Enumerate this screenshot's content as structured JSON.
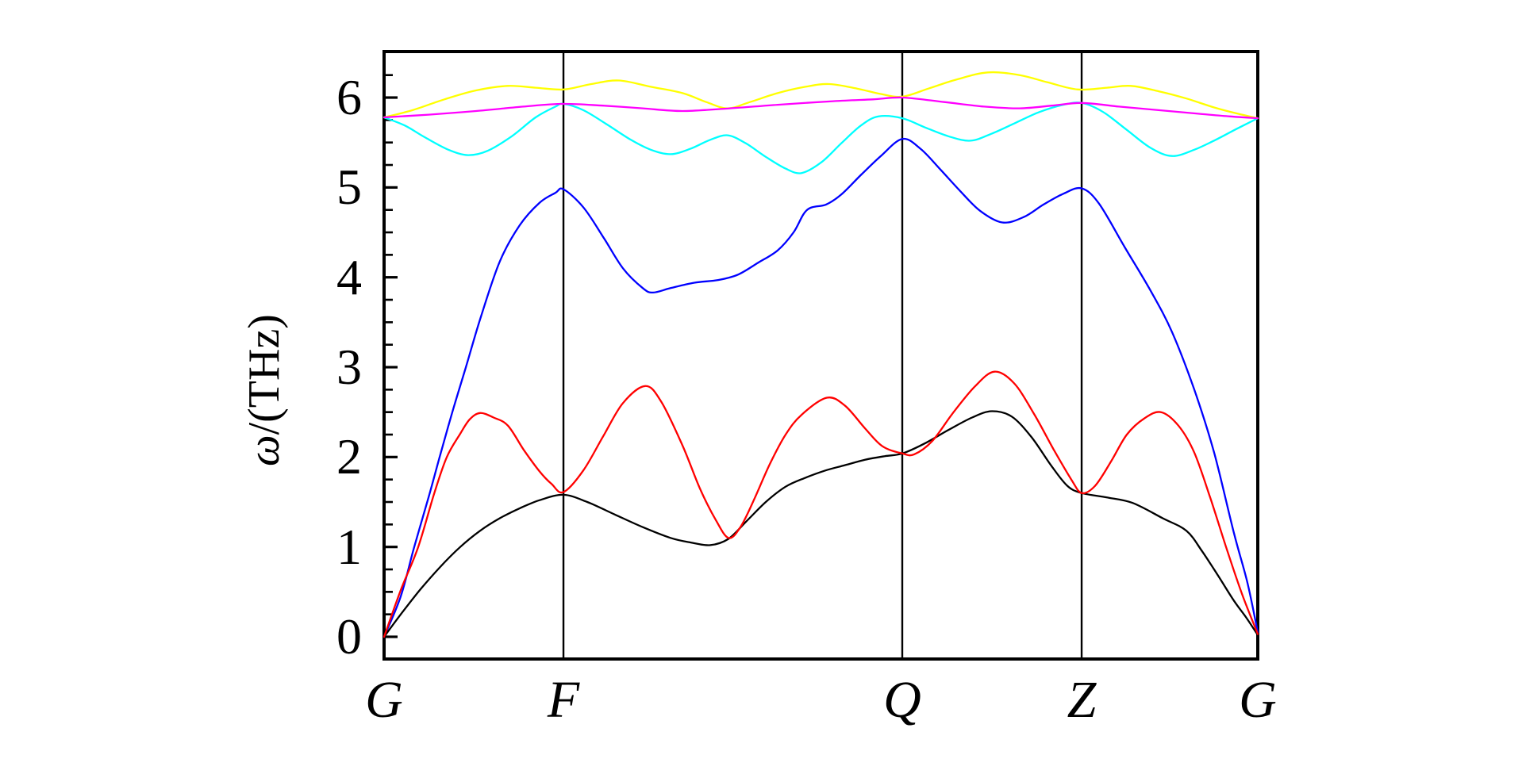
{
  "chart_data": {
    "type": "line",
    "title": "",
    "ylabel": "ω/(THz)",
    "ylabel_parts": [
      "ω",
      "/(THz)"
    ],
    "legend": "none",
    "grid": "off",
    "x_axis": {
      "description": "High-symmetry point path, vertical reference lines at interior points",
      "symmetry_points": [
        {
          "label": "G",
          "pos": 0.0
        },
        {
          "label": "F",
          "pos": 0.2053
        },
        {
          "label": "Q",
          "pos": 0.5931
        },
        {
          "label": "Z",
          "pos": 0.7984
        },
        {
          "label": "G",
          "pos": 1.0
        }
      ]
    },
    "y_axis": {
      "min": -0.25,
      "max": 6.52,
      "major_step": 1,
      "minor_step": 0.25,
      "tick_labels": [
        "0",
        "1",
        "2",
        "3",
        "4",
        "5",
        "6"
      ]
    },
    "series": [
      {
        "name": "branch-4-cyan",
        "color": "#00ffff",
        "points": [
          [
            0,
            5.78
          ],
          [
            0.0236,
            5.69
          ],
          [
            0.0463,
            5.56
          ],
          [
            0.0736,
            5.42
          ],
          [
            0.0963,
            5.36
          ],
          [
            0.119,
            5.41
          ],
          [
            0.1462,
            5.57
          ],
          [
            0.1735,
            5.78
          ],
          [
            0.1962,
            5.9
          ],
          [
            0.2053,
            5.93
          ],
          [
            0.228,
            5.86
          ],
          [
            0.2552,
            5.7
          ],
          [
            0.2825,
            5.53
          ],
          [
            0.3052,
            5.42
          ],
          [
            0.3279,
            5.37
          ],
          [
            0.3506,
            5.43
          ],
          [
            0.3733,
            5.53
          ],
          [
            0.3933,
            5.58
          ],
          [
            0.4142,
            5.49
          ],
          [
            0.4369,
            5.34
          ],
          [
            0.4596,
            5.21
          ],
          [
            0.4778,
            5.16
          ],
          [
            0.5005,
            5.28
          ],
          [
            0.5232,
            5.49
          ],
          [
            0.5459,
            5.69
          ],
          [
            0.5659,
            5.79
          ],
          [
            0.5931,
            5.77
          ],
          [
            0.6185,
            5.67
          ],
          [
            0.6458,
            5.57
          ],
          [
            0.6712,
            5.52
          ],
          [
            0.6957,
            5.6
          ],
          [
            0.723,
            5.72
          ],
          [
            0.7502,
            5.84
          ],
          [
            0.7775,
            5.92
          ],
          [
            0.7984,
            5.94
          ],
          [
            0.8229,
            5.84
          ],
          [
            0.8501,
            5.64
          ],
          [
            0.8774,
            5.44
          ],
          [
            0.9019,
            5.35
          ],
          [
            0.9273,
            5.42
          ],
          [
            0.9519,
            5.53
          ],
          [
            0.9755,
            5.65
          ],
          [
            1,
            5.77
          ]
        ]
      },
      {
        "name": "branch-6-yellow",
        "color": "#ffff00",
        "points": [
          [
            0,
            5.78
          ],
          [
            0.0327,
            5.86
          ],
          [
            0.069,
            5.98
          ],
          [
            0.1053,
            6.08
          ],
          [
            0.1417,
            6.13
          ],
          [
            0.1735,
            6.11
          ],
          [
            0.2053,
            6.09
          ],
          [
            0.2371,
            6.15
          ],
          [
            0.2689,
            6.19
          ],
          [
            0.3052,
            6.12
          ],
          [
            0.3415,
            6.05
          ],
          [
            0.3688,
            5.95
          ],
          [
            0.3933,
            5.88
          ],
          [
            0.4187,
            5.95
          ],
          [
            0.4505,
            6.05
          ],
          [
            0.4823,
            6.12
          ],
          [
            0.5095,
            6.15
          ],
          [
            0.5413,
            6.1
          ],
          [
            0.5686,
            6.04
          ],
          [
            0.5931,
            6.01
          ],
          [
            0.6231,
            6.1
          ],
          [
            0.6549,
            6.2
          ],
          [
            0.6912,
            6.28
          ],
          [
            0.7275,
            6.25
          ],
          [
            0.7593,
            6.17
          ],
          [
            0.7938,
            6.09
          ],
          [
            0.8274,
            6.11
          ],
          [
            0.8547,
            6.13
          ],
          [
            0.8865,
            6.07
          ],
          [
            0.9183,
            5.99
          ],
          [
            0.95,
            5.89
          ],
          [
            0.9773,
            5.82
          ],
          [
            1,
            5.77
          ]
        ]
      },
      {
        "name": "branch-5-magenta",
        "color": "#ff00ff",
        "points": [
          [
            0,
            5.78
          ],
          [
            0.0509,
            5.81
          ],
          [
            0.1053,
            5.85
          ],
          [
            0.1599,
            5.9
          ],
          [
            0.2053,
            5.93
          ],
          [
            0.2507,
            5.91
          ],
          [
            0.2961,
            5.88
          ],
          [
            0.3415,
            5.85
          ],
          [
            0.396,
            5.88
          ],
          [
            0.4505,
            5.92
          ],
          [
            0.5141,
            5.96
          ],
          [
            0.5595,
            5.98
          ],
          [
            0.5931,
            6.0
          ],
          [
            0.6412,
            5.95
          ],
          [
            0.6866,
            5.9
          ],
          [
            0.7275,
            5.88
          ],
          [
            0.7639,
            5.91
          ],
          [
            0.7984,
            5.94
          ],
          [
            0.841,
            5.9
          ],
          [
            0.8865,
            5.86
          ],
          [
            0.9319,
            5.82
          ],
          [
            0.9682,
            5.79
          ],
          [
            1,
            5.77
          ]
        ]
      },
      {
        "name": "branch-3-blue",
        "color": "#0000ff",
        "points": [
          [
            0,
            0
          ],
          [
            0.0191,
            0.45
          ],
          [
            0.0345,
            1.0
          ],
          [
            0.0509,
            1.55
          ],
          [
            0.0636,
            2.0
          ],
          [
            0.0781,
            2.5
          ],
          [
            0.0936,
            3.0
          ],
          [
            0.1108,
            3.56
          ],
          [
            0.1326,
            4.18
          ],
          [
            0.1553,
            4.58
          ],
          [
            0.178,
            4.83
          ],
          [
            0.1962,
            4.94
          ],
          [
            0.2053,
            4.98
          ],
          [
            0.228,
            4.78
          ],
          [
            0.2507,
            4.45
          ],
          [
            0.2734,
            4.1
          ],
          [
            0.2961,
            3.88
          ],
          [
            0.3079,
            3.83
          ],
          [
            0.3279,
            3.88
          ],
          [
            0.3551,
            3.94
          ],
          [
            0.3824,
            3.97
          ],
          [
            0.4051,
            4.03
          ],
          [
            0.4278,
            4.16
          ],
          [
            0.4505,
            4.3
          ],
          [
            0.4687,
            4.5
          ],
          [
            0.4841,
            4.75
          ],
          [
            0.5059,
            4.81
          ],
          [
            0.5232,
            4.92
          ],
          [
            0.5459,
            5.14
          ],
          [
            0.5686,
            5.35
          ],
          [
            0.5931,
            5.54
          ],
          [
            0.614,
            5.43
          ],
          [
            0.6367,
            5.2
          ],
          [
            0.6594,
            4.96
          ],
          [
            0.6821,
            4.74
          ],
          [
            0.7075,
            4.61
          ],
          [
            0.7321,
            4.67
          ],
          [
            0.7548,
            4.81
          ],
          [
            0.7775,
            4.93
          ],
          [
            0.7984,
            4.99
          ],
          [
            0.8183,
            4.82
          ],
          [
            0.8474,
            4.34
          ],
          [
            0.8774,
            3.85
          ],
          [
            0.9019,
            3.39
          ],
          [
            0.9273,
            2.75
          ],
          [
            0.95,
            2.05
          ],
          [
            0.9728,
            1.15
          ],
          [
            0.9882,
            0.6
          ],
          [
            1,
            0.05
          ]
        ]
      },
      {
        "name": "branch-1-black",
        "color": "#000000",
        "points": [
          [
            0,
            0
          ],
          [
            0.0191,
            0.25
          ],
          [
            0.0418,
            0.53
          ],
          [
            0.0645,
            0.78
          ],
          [
            0.0872,
            1.0
          ],
          [
            0.1099,
            1.18
          ],
          [
            0.1326,
            1.32
          ],
          [
            0.1553,
            1.43
          ],
          [
            0.178,
            1.52
          ],
          [
            0.2053,
            1.58
          ],
          [
            0.2325,
            1.5
          ],
          [
            0.2643,
            1.36
          ],
          [
            0.2961,
            1.22
          ],
          [
            0.3279,
            1.1
          ],
          [
            0.3506,
            1.05
          ],
          [
            0.3733,
            1.02
          ],
          [
            0.3942,
            1.09
          ],
          [
            0.4142,
            1.28
          ],
          [
            0.4369,
            1.5
          ],
          [
            0.4596,
            1.67
          ],
          [
            0.4823,
            1.77
          ],
          [
            0.505,
            1.85
          ],
          [
            0.5277,
            1.91
          ],
          [
            0.5504,
            1.97
          ],
          [
            0.5731,
            2.01
          ],
          [
            0.5931,
            2.04
          ],
          [
            0.6185,
            2.15
          ],
          [
            0.6458,
            2.3
          ],
          [
            0.673,
            2.44
          ],
          [
            0.6957,
            2.51
          ],
          [
            0.7184,
            2.45
          ],
          [
            0.7411,
            2.22
          ],
          [
            0.7639,
            1.9
          ],
          [
            0.782,
            1.68
          ],
          [
            0.7984,
            1.6
          ],
          [
            0.8274,
            1.55
          ],
          [
            0.8565,
            1.49
          ],
          [
            0.891,
            1.32
          ],
          [
            0.9183,
            1.18
          ],
          [
            0.9364,
            0.95
          ],
          [
            0.9546,
            0.68
          ],
          [
            0.9728,
            0.4
          ],
          [
            0.9864,
            0.22
          ],
          [
            1,
            0.02
          ]
        ]
      },
      {
        "name": "branch-2-red",
        "color": "#ff0000",
        "points": [
          [
            0,
            0
          ],
          [
            0.0191,
            0.52
          ],
          [
            0.0391,
            1.0
          ],
          [
            0.0572,
            1.59
          ],
          [
            0.0718,
            2.0
          ],
          [
            0.0872,
            2.26
          ],
          [
            0.0981,
            2.42
          ],
          [
            0.1099,
            2.49
          ],
          [
            0.1253,
            2.44
          ],
          [
            0.1417,
            2.35
          ],
          [
            0.1599,
            2.08
          ],
          [
            0.178,
            1.84
          ],
          [
            0.1917,
            1.7
          ],
          [
            0.2053,
            1.61
          ],
          [
            0.228,
            1.85
          ],
          [
            0.2507,
            2.23
          ],
          [
            0.2734,
            2.6
          ],
          [
            0.2988,
            2.79
          ],
          [
            0.317,
            2.62
          ],
          [
            0.3415,
            2.13
          ],
          [
            0.3615,
            1.65
          ],
          [
            0.3797,
            1.3
          ],
          [
            0.3942,
            1.1
          ],
          [
            0.4078,
            1.22
          ],
          [
            0.4232,
            1.52
          ],
          [
            0.4414,
            1.92
          ],
          [
            0.4596,
            2.25
          ],
          [
            0.4778,
            2.47
          ],
          [
            0.5068,
            2.66
          ],
          [
            0.5277,
            2.57
          ],
          [
            0.5504,
            2.32
          ],
          [
            0.5704,
            2.12
          ],
          [
            0.5931,
            2.04
          ],
          [
            0.6067,
            2.03
          ],
          [
            0.6276,
            2.18
          ],
          [
            0.6503,
            2.48
          ],
          [
            0.6757,
            2.78
          ],
          [
            0.6985,
            2.95
          ],
          [
            0.7212,
            2.82
          ],
          [
            0.7439,
            2.48
          ],
          [
            0.7666,
            2.08
          ],
          [
            0.7866,
            1.75
          ],
          [
            0.7984,
            1.6
          ],
          [
            0.8138,
            1.68
          ],
          [
            0.832,
            1.95
          ],
          [
            0.8501,
            2.25
          ],
          [
            0.8701,
            2.43
          ],
          [
            0.8892,
            2.5
          ],
          [
            0.9092,
            2.35
          ],
          [
            0.9273,
            2.05
          ],
          [
            0.9455,
            1.55
          ],
          [
            0.9637,
            1.0
          ],
          [
            0.9818,
            0.48
          ],
          [
            1,
            0.03
          ]
        ]
      }
    ],
    "frame_color": "#000000"
  }
}
